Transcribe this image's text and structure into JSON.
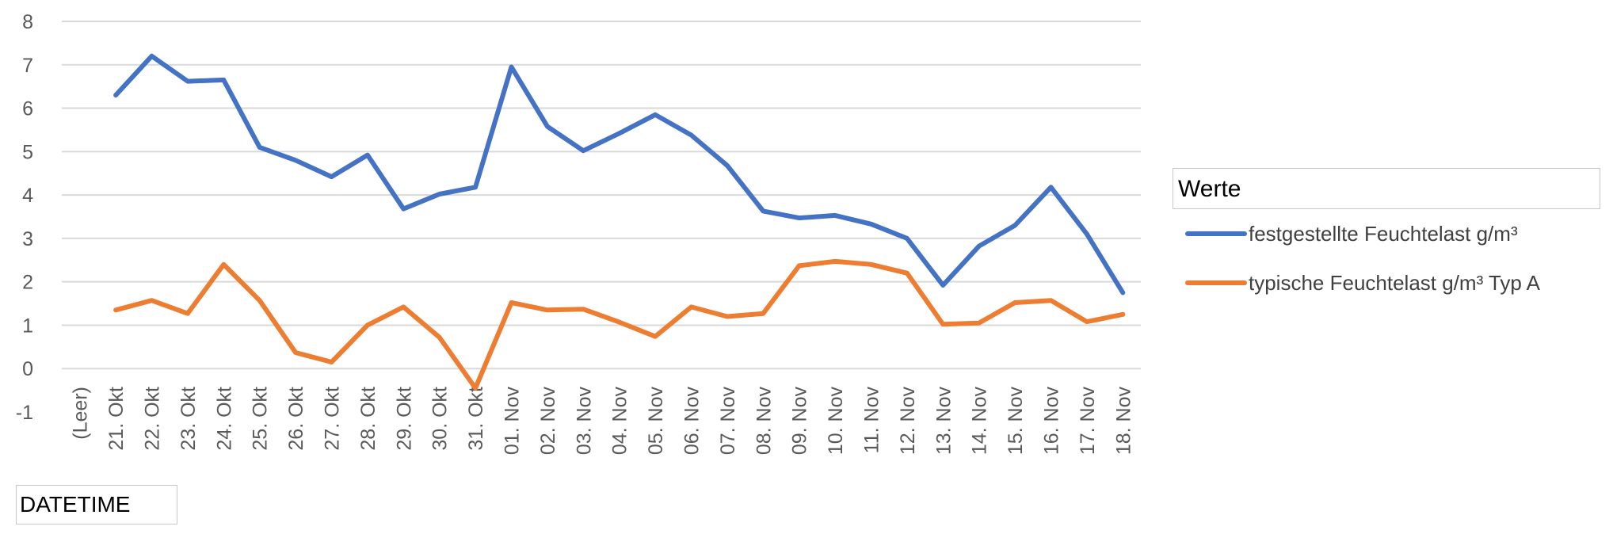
{
  "chart_data": {
    "type": "line",
    "categories": [
      "(Leer)",
      "21. Okt",
      "22. Okt",
      "23. Okt",
      "24. Okt",
      "25. Okt",
      "26. Okt",
      "27. Okt",
      "28. Okt",
      "29. Okt",
      "30. Okt",
      "31. Okt",
      "01. Nov",
      "02. Nov",
      "03. Nov",
      "04. Nov",
      "05. Nov",
      "06. Nov",
      "07. Nov",
      "08. Nov",
      "09. Nov",
      "10. Nov",
      "11. Nov",
      "12. Nov",
      "13. Nov",
      "14. Nov",
      "15. Nov",
      "16. Nov",
      "17. Nov",
      "18. Nov"
    ],
    "series": [
      {
        "name": "festgestellte Feuchtelast g/m³",
        "color": "#4472C4",
        "values": [
          null,
          6.3,
          7.2,
          6.62,
          6.65,
          5.1,
          4.8,
          4.42,
          4.92,
          3.68,
          4.02,
          4.18,
          6.95,
          5.58,
          5.02,
          5.42,
          5.85,
          5.38,
          4.68,
          3.63,
          3.47,
          3.53,
          3.33,
          3.0,
          1.92,
          2.82,
          3.3,
          4.18,
          3.1,
          1.75
        ]
      },
      {
        "name": "typische Feuchtelast g/m³ Typ A",
        "color": "#ED7D31",
        "values": [
          null,
          1.35,
          1.57,
          1.27,
          2.4,
          1.57,
          0.37,
          0.15,
          1.0,
          1.42,
          0.72,
          -0.45,
          1.52,
          1.35,
          1.37,
          1.07,
          0.74,
          1.42,
          1.2,
          1.27,
          2.37,
          2.47,
          2.4,
          2.2,
          1.02,
          1.05,
          1.52,
          1.57,
          1.08,
          1.25
        ]
      }
    ],
    "ylim": [
      -1,
      8
    ],
    "yticks": [
      -1,
      0,
      1,
      2,
      3,
      4,
      5,
      6,
      7,
      8
    ],
    "grid": true,
    "legend_title": "Werte",
    "legend_position": "right"
  },
  "field_button": "DATETIME"
}
